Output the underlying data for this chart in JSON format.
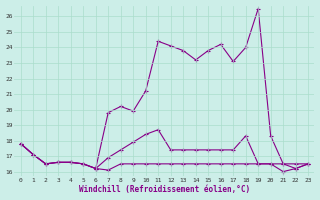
{
  "xlabel": "Windchill (Refroidissement éolien,°C)",
  "x": [
    0,
    1,
    2,
    3,
    4,
    5,
    6,
    7,
    8,
    9,
    10,
    11,
    12,
    13,
    14,
    15,
    16,
    17,
    18,
    19,
    20,
    21,
    22,
    23
  ],
  "line_top": [
    17.8,
    17.1,
    16.5,
    16.6,
    16.6,
    16.5,
    16.2,
    19.8,
    20.2,
    19.9,
    21.2,
    24.4,
    24.1,
    23.8,
    23.2,
    23.8,
    24.2,
    23.1,
    24.0,
    26.5,
    18.3,
    16.5,
    16.2,
    16.5
  ],
  "line_mid": [
    17.8,
    17.1,
    16.5,
    16.6,
    16.6,
    16.5,
    16.2,
    16.9,
    17.4,
    17.9,
    18.4,
    18.7,
    17.4,
    17.4,
    17.4,
    17.4,
    17.4,
    17.4,
    18.3,
    16.5,
    16.5,
    16.5,
    16.5,
    16.5
  ],
  "line_bot": [
    17.8,
    17.1,
    16.5,
    16.6,
    16.6,
    16.5,
    16.2,
    16.1,
    16.5,
    16.5,
    16.5,
    16.5,
    16.5,
    16.5,
    16.5,
    16.5,
    16.5,
    16.5,
    16.5,
    16.5,
    16.5,
    16.0,
    16.2,
    16.5
  ],
  "color": "#880088",
  "bg_color": "#cceee8",
  "grid_color": "#aaddcc",
  "ylim": [
    15.7,
    26.7
  ],
  "yticks": [
    16,
    17,
    18,
    19,
    20,
    21,
    22,
    23,
    24,
    25,
    26
  ],
  "xticks": [
    0,
    1,
    2,
    3,
    4,
    5,
    6,
    7,
    8,
    9,
    10,
    11,
    12,
    13,
    14,
    15,
    16,
    17,
    18,
    19,
    20,
    21,
    22,
    23
  ]
}
